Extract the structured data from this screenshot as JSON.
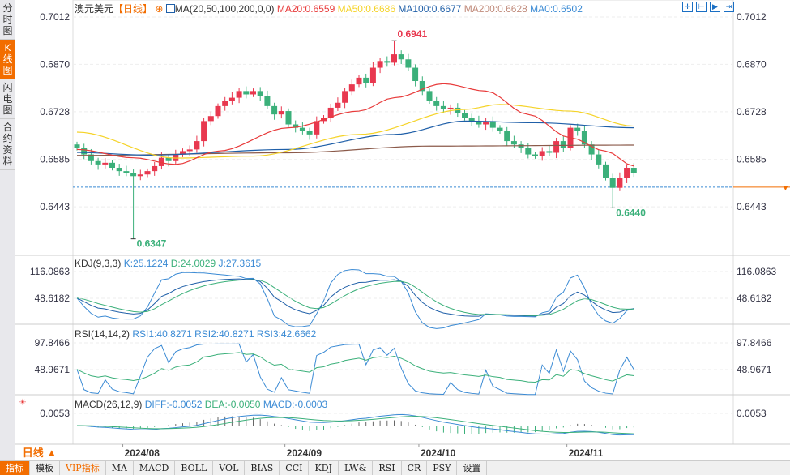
{
  "sidebar": {
    "tabs": [
      {
        "label": "分时图"
      },
      {
        "label": "K线图",
        "active": true
      },
      {
        "label": "闪电图"
      },
      {
        "label": "合约资料"
      }
    ]
  },
  "header": {
    "symbol": "澳元美元",
    "period": "【日线】",
    "ma_label": "MA(20,50,100,200,0,0)",
    "ma20": "MA20:0.6559",
    "ma50": "MA50:0.6686",
    "ma100": "MA100:0.6677",
    "ma200": "MA200:0.6628",
    "ma0": "MA0:0.6502"
  },
  "kdj_legend": {
    "name": "KDJ(9,3,3)",
    "k": "K:25.1224",
    "d": "D:24.0029",
    "j": "J:27.3615"
  },
  "rsi_legend": {
    "name": "RSI(14,14,2)",
    "r1": "RSI1:40.8271",
    "r2": "RSI2:40.8271",
    "r3": "RSI3:42.6662"
  },
  "macd_legend": {
    "name": "MACD(26,12,9)",
    "diff": "DIFF:-0.0052",
    "dea": "DEA:-0.0050",
    "macd": "MACD:-0.0003"
  },
  "period_label": "日线 ▲",
  "toolbar": [
    "指标",
    "模板",
    "VIP指标",
    "MA",
    "MACD",
    "BOLL",
    "VOL",
    "BIAS",
    "CCI",
    "KDJ",
    "LW&",
    "RSI",
    "CR",
    "PSY",
    "设置"
  ],
  "colors": {
    "up": "#e8384f",
    "down": "#3bb07a",
    "ma20": "#e83a3a",
    "ma50": "#f5d328",
    "ma100": "#1f5fa8",
    "ma200": "#8b5a4a",
    "accent": "#f26d00"
  },
  "chart_data": {
    "type": "candlestick",
    "price_ticks": [
      "0.7012",
      "0.6870",
      "0.6728",
      "0.6585",
      "0.6443"
    ],
    "kdj_ticks": [
      "116.0863",
      "48.6182"
    ],
    "rsi_ticks": [
      "97.8466",
      "48.9671"
    ],
    "macd_ticks": [
      "0.0053"
    ],
    "x_ticks": [
      {
        "label": "2024/08",
        "i": 6.5
      },
      {
        "label": "2024/09",
        "i": 29.5
      },
      {
        "label": "2024/10",
        "i": 48.5
      },
      {
        "label": "2024/11",
        "i": 69.5
      }
    ],
    "ylim": [
      0.63,
      0.705
    ],
    "closes": [
      0.662,
      0.66,
      0.658,
      0.657,
      0.6575,
      0.656,
      0.655,
      0.6545,
      0.6535,
      0.654,
      0.655,
      0.6565,
      0.659,
      0.658,
      0.66,
      0.661,
      0.6615,
      0.664,
      0.67,
      0.6715,
      0.6745,
      0.676,
      0.677,
      0.679,
      0.678,
      0.679,
      0.6775,
      0.6745,
      0.672,
      0.673,
      0.669,
      0.668,
      0.667,
      0.666,
      0.67,
      0.671,
      0.674,
      0.6755,
      0.679,
      0.681,
      0.683,
      0.6815,
      0.686,
      0.688,
      0.6875,
      0.69,
      0.6885,
      0.686,
      0.682,
      0.679,
      0.676,
      0.6745,
      0.6735,
      0.674,
      0.6725,
      0.671,
      0.67,
      0.669,
      0.67,
      0.668,
      0.667,
      0.664,
      0.663,
      0.662,
      0.66,
      0.6595,
      0.661,
      0.6605,
      0.664,
      0.662,
      0.668,
      0.667,
      0.663,
      0.66,
      0.657,
      0.653,
      0.65,
      0.653,
      0.656,
      0.6545
    ],
    "annotations": [
      {
        "label": "0.6347",
        "i": 8,
        "price": 0.6347,
        "type": "low"
      },
      {
        "label": "0.6941",
        "i": 45,
        "price": 0.6941,
        "type": "high"
      },
      {
        "label": "0.6440",
        "i": 76,
        "price": 0.644,
        "type": "low"
      }
    ],
    "ma_lines": {
      "ma20": [
        [
          0,
          0.6615
        ],
        [
          8,
          0.659
        ],
        [
          14,
          0.657
        ],
        [
          20,
          0.661
        ],
        [
          30,
          0.668
        ],
        [
          40,
          0.673
        ],
        [
          45,
          0.677
        ],
        [
          52,
          0.6812
        ],
        [
          58,
          0.679
        ],
        [
          64,
          0.672
        ],
        [
          70,
          0.665
        ],
        [
          75,
          0.661
        ],
        [
          79,
          0.6565
        ]
      ],
      "ma50": [
        [
          0,
          0.6667
        ],
        [
          14,
          0.6589
        ],
        [
          25,
          0.6595
        ],
        [
          40,
          0.666
        ],
        [
          55,
          0.6735
        ],
        [
          60,
          0.675
        ],
        [
          70,
          0.673
        ],
        [
          79,
          0.6685
        ]
      ],
      "ma100": [
        [
          0,
          0.6606
        ],
        [
          10,
          0.6598
        ],
        [
          30,
          0.6615
        ],
        [
          45,
          0.666
        ],
        [
          55,
          0.67
        ],
        [
          65,
          0.6695
        ],
        [
          79,
          0.668
        ]
      ],
      "ma200": [
        [
          0,
          0.6597
        ],
        [
          30,
          0.6605
        ],
        [
          50,
          0.6625
        ],
        [
          79,
          0.6628
        ]
      ]
    },
    "ma0": 0.6502
  }
}
